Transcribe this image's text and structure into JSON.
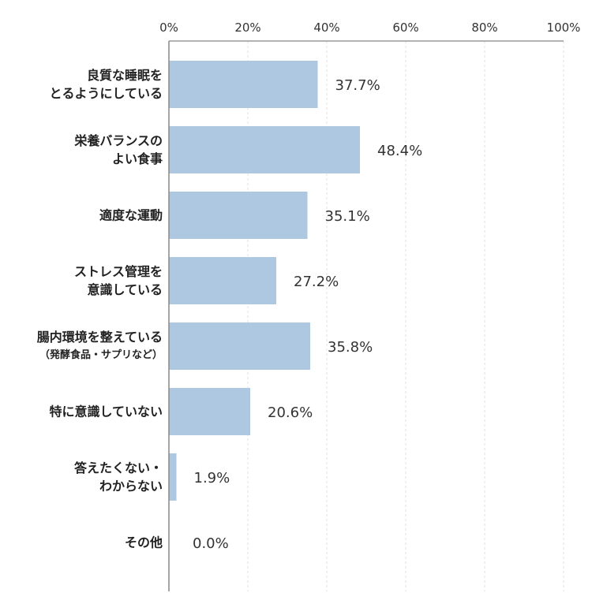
{
  "chart_data": {
    "type": "bar",
    "orientation": "horizontal",
    "categories": [
      [
        "良質な睡眠を",
        "とるようにしている"
      ],
      [
        "栄養バランスの",
        "よい食事"
      ],
      [
        "適度な運動"
      ],
      [
        "ストレス管理を",
        "意識している"
      ],
      [
        "腸内環境を整えている",
        "（発酵食品・サプリなど）"
      ],
      [
        "特に意識していない"
      ],
      [
        "答えたくない・",
        "わからない"
      ],
      [
        "その他"
      ]
    ],
    "values": [
      37.7,
      48.4,
      35.1,
      27.2,
      35.8,
      20.6,
      1.9,
      0.0
    ],
    "data_labels": [
      "37.7%",
      "48.4%",
      "35.1%",
      "27.2%",
      "35.8%",
      "20.6%",
      "1.9%",
      "0.0%"
    ],
    "xlim": [
      0,
      100
    ],
    "x_ticks": [
      "0%",
      "20%",
      "40%",
      "60%",
      "80%",
      "100%"
    ],
    "x_tick_values": [
      0,
      20,
      40,
      60,
      80,
      100
    ],
    "grid": "vertical dashed",
    "bar_color": "#adc8e0",
    "title": "",
    "xlabel": "",
    "ylabel": ""
  }
}
